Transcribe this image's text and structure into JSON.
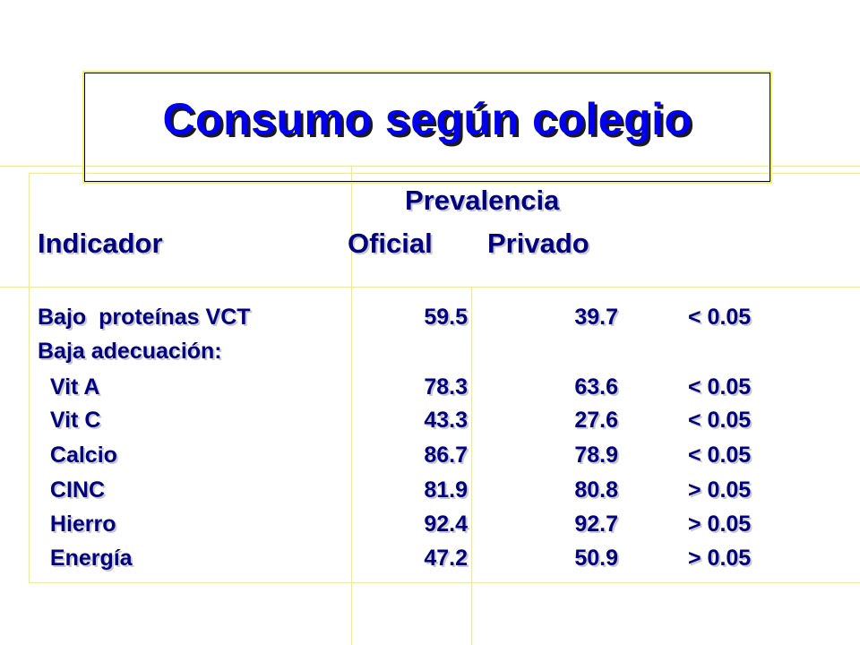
{
  "title": "Consumo según colegio",
  "colors": {
    "title": "#0000ee",
    "text": "#000080",
    "guide_lines": "#f2ef6a"
  },
  "table": {
    "header_group": "Prevalencia",
    "col_indicator": "Indicador",
    "col_oficial": "Oficial",
    "col_privado": "Privado",
    "rows": [
      {
        "label": "Bajo  proteínas VCT",
        "oficial": "59.5",
        "privado": "39.7",
        "p": "< 0.05"
      },
      {
        "label": "Baja adecuación:",
        "oficial": "",
        "privado": "",
        "p": ""
      },
      {
        "label": "  Vit A",
        "oficial": "78.3",
        "privado": "63.6",
        "p": "< 0.05"
      },
      {
        "label": "  Vit C",
        "oficial": "43.3",
        "privado": "27.6",
        "p": "< 0.05"
      },
      {
        "label": "  Calcio",
        "oficial": "86.7",
        "privado": "78.9",
        "p": "< 0.05"
      },
      {
        "label": "  CINC",
        "oficial": "81.9",
        "privado": "80.8",
        "p": "> 0.05"
      },
      {
        "label": "  Hierro",
        "oficial": "92.4",
        "privado": "92.7",
        "p": "> 0.05"
      },
      {
        "label": "  Energía",
        "oficial": "47.2",
        "privado": "50.9",
        "p": "> 0.05"
      }
    ]
  }
}
